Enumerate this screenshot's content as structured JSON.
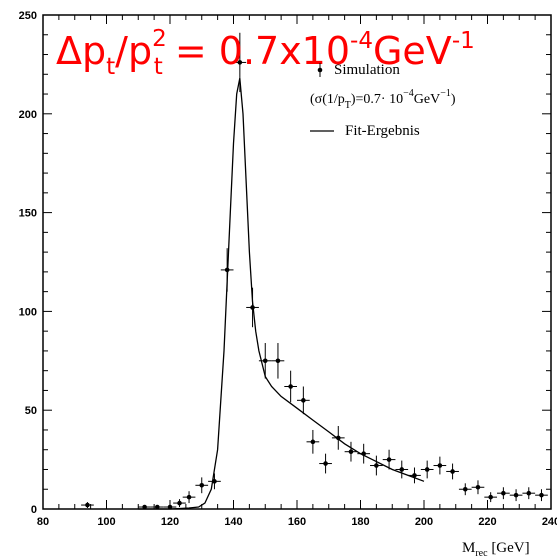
{
  "chart_data": {
    "type": "scatter",
    "title": "Δp_t/p_t^2 = 0.7x10^-4 GeV^-1",
    "title_parts": {
      "delta_p": "Δp",
      "sub1": "t",
      "slash_p": "/p",
      "sup2": "2",
      "sub2": "t",
      "equals": " = 0.7x10",
      "exp": "-4",
      "gev": "GeV",
      "exp2": "-1"
    },
    "xlabel": "M_rec [GeV]",
    "xlabel_parts": {
      "m": "M",
      "sub": "rec",
      "unit": " [GeV]"
    },
    "ylabel": "",
    "xlim": [
      80,
      240
    ],
    "ylim": [
      0,
      250
    ],
    "x_ticks": [
      "80",
      "100",
      "120",
      "140",
      "160",
      "180",
      "200",
      "220",
      "240"
    ],
    "y_ticks": [
      "0",
      "50",
      "100",
      "150",
      "200",
      "250"
    ],
    "grid": false,
    "legend_position": "top-right",
    "legend": {
      "simulation": "Simulation",
      "sigma_open": "(σ(1/p",
      "sigma_sub": "T",
      "sigma_mid": ")=0.7· 10",
      "sigma_exp": "−4",
      "sigma_unit": "GeV",
      "sigma_exp2": "−1",
      "sigma_close": ")",
      "fit": "Fit-Ergebnis"
    },
    "series": [
      {
        "name": "Simulation",
        "x": [
          94,
          112,
          116,
          120,
          123,
          126,
          130,
          134,
          138,
          142,
          146,
          150,
          154,
          158,
          162,
          165,
          169,
          173,
          177,
          181,
          185,
          189,
          193,
          197,
          201,
          205,
          209,
          213,
          217,
          221,
          225,
          229,
          233,
          237
        ],
        "y": [
          2,
          1,
          1,
          1,
          3,
          6,
          12,
          14,
          121,
          226,
          102,
          75,
          75,
          62,
          55,
          34,
          23,
          36,
          29,
          28,
          22,
          25,
          20,
          17,
          20,
          22,
          19,
          10,
          11,
          6,
          8,
          7,
          8,
          7
        ],
        "err": [
          1.5,
          1,
          1,
          1,
          2,
          3,
          4,
          4,
          11,
          15,
          10,
          9,
          9,
          8,
          7,
          6,
          5,
          6,
          5,
          5,
          5,
          5,
          4.5,
          4,
          4.5,
          4.5,
          4,
          3,
          3.5,
          2.5,
          3,
          3,
          3,
          3
        ]
      },
      {
        "name": "Fit-Ergebnis",
        "x": [
          110,
          120,
          126,
          129,
          131,
          133,
          135,
          137,
          139,
          140,
          141,
          142,
          143,
          144,
          145,
          146,
          147,
          148,
          150,
          152,
          155,
          160,
          165,
          170,
          175,
          180,
          185,
          190,
          195,
          200
        ],
        "y": [
          0,
          0,
          0.5,
          1,
          3,
          10,
          30,
          80,
          150,
          185,
          210,
          218,
          200,
          165,
          130,
          105,
          90,
          80,
          67,
          62,
          57,
          51,
          45,
          39,
          33,
          28,
          24,
          20,
          17,
          14
        ]
      }
    ]
  }
}
